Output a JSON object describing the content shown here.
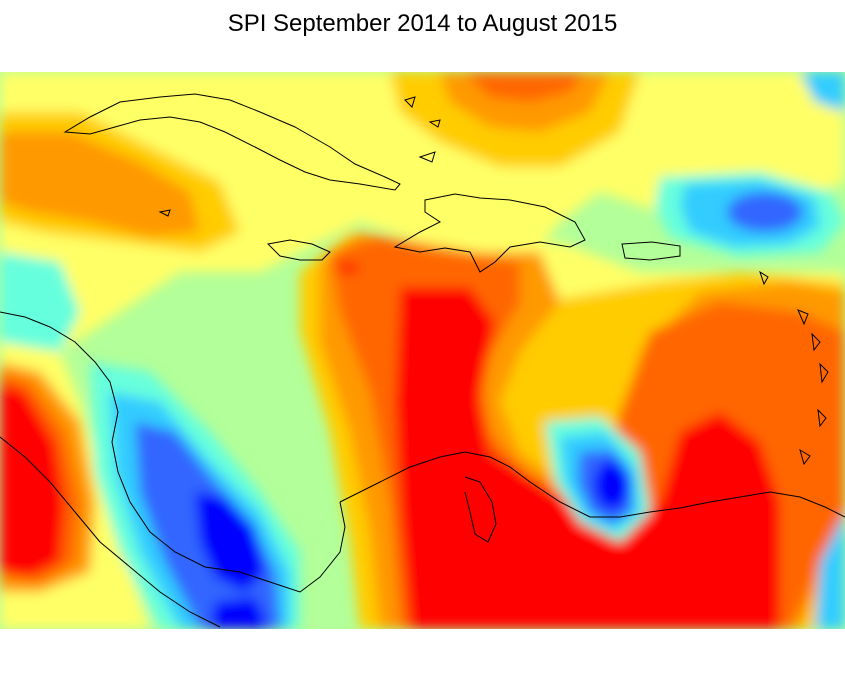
{
  "title": "SPI September 2014 to August 2015",
  "color_scale": {
    "red": "#ff0000",
    "orange_red": "#ff6600",
    "orange": "#ff9900",
    "yellow_orange": "#ffcc00",
    "yellow": "#ffff66",
    "light_green": "#b3ff99",
    "aqua_green": "#66ffdd",
    "cyan": "#33ccff",
    "blue": "#3366ff",
    "deep_blue": "#0000ff"
  },
  "outline_color": "#000000"
}
